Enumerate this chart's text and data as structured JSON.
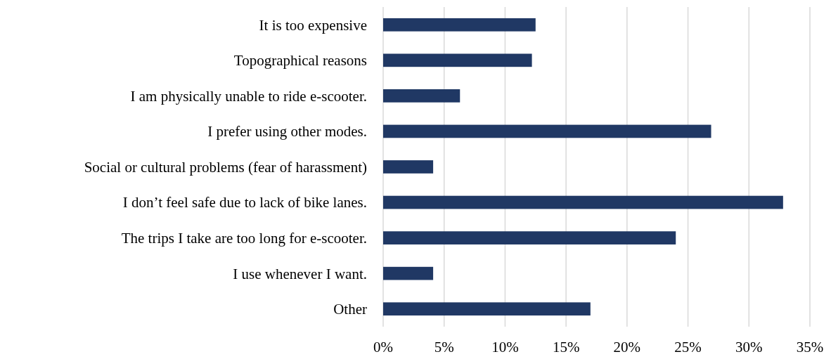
{
  "chart_data": {
    "type": "bar",
    "orientation": "horizontal",
    "categories": [
      "It is too expensive",
      "Topographical reasons",
      "I am physically unable to ride e-scooter.",
      "I prefer using other modes.",
      "Social or cultural problems (fear of harassment)",
      "I don’t feel safe due to lack of bike lanes.",
      "The trips I take are too long for e-scooter.",
      "I use whenever I want.",
      "Other"
    ],
    "values": [
      12.5,
      12.2,
      6.3,
      26.9,
      4.1,
      32.8,
      24.0,
      4.1,
      17.0
    ],
    "color": "#203864",
    "xlim": [
      0,
      35
    ],
    "xticks": [
      {
        "value": 0,
        "label": "0%"
      },
      {
        "value": 5,
        "label": "5%"
      },
      {
        "value": 10,
        "label": "10%"
      },
      {
        "value": 15,
        "label": "15%"
      },
      {
        "value": 20,
        "label": "20%"
      },
      {
        "value": 25,
        "label": "25%"
      },
      {
        "value": 30,
        "label": "30%"
      },
      {
        "value": 35,
        "label": "35%"
      }
    ],
    "grid": "x"
  }
}
